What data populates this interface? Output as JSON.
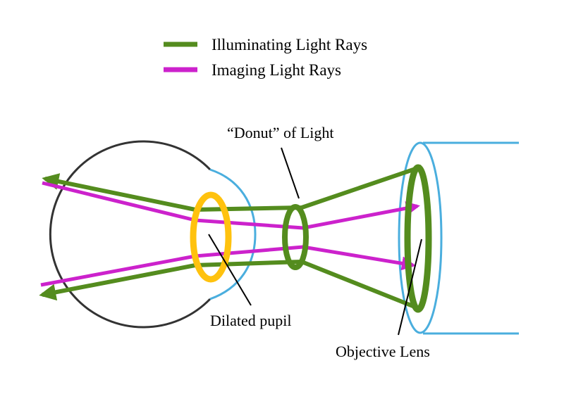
{
  "legend": {
    "items": [
      {
        "label": "Illuminating Light Rays",
        "color": "#548c1e"
      },
      {
        "label": "Imaging Light Rays",
        "color": "#cc22cc"
      }
    ]
  },
  "labels": {
    "donut": "“Donut” of Light",
    "pupil": "Dilated pupil",
    "objective": "Objective Lens"
  },
  "colors": {
    "illuminating": "#548c1e",
    "imaging": "#cc22cc",
    "pupil_ring": "#ffc20e",
    "cornea": "#4aaede",
    "eyeball": "#333333",
    "objective_housing": "#4aaede",
    "pointer": "#000000"
  }
}
